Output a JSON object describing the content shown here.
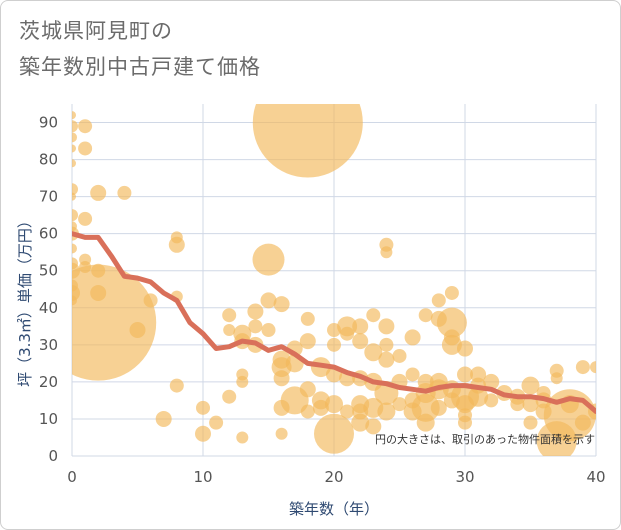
{
  "title_line1": "茨城県阿見町の",
  "title_line2": "築年数別中古戸建て価格",
  "chart_data": {
    "type": "scatter",
    "title": "茨城県阿見町の 築年数別中古戸建て価格",
    "xlabel": "築年数（年）",
    "ylabel": "坪（3.3㎡）単価（万円）",
    "xlim": [
      0,
      40
    ],
    "ylim": [
      0,
      95
    ],
    "x_ticks": [
      0,
      10,
      20,
      30,
      40
    ],
    "y_ticks": [
      0,
      10,
      20,
      30,
      40,
      50,
      60,
      70,
      80,
      90
    ],
    "grid": true,
    "annotation": "円の大きさは、取引のあった物件面積を示す",
    "colors": {
      "bubble": "#f2b85a",
      "line": "#d9705a",
      "grid": "#d0d8e6",
      "axis_title": "#2f4a72"
    },
    "bubbles": [
      {
        "x": 0,
        "y": 92,
        "r": 4
      },
      {
        "x": 0,
        "y": 89,
        "r": 6
      },
      {
        "x": 0,
        "y": 86,
        "r": 5
      },
      {
        "x": 0,
        "y": 83,
        "r": 4
      },
      {
        "x": 0,
        "y": 79,
        "r": 4
      },
      {
        "x": 0,
        "y": 72,
        "r": 6
      },
      {
        "x": 0,
        "y": 70,
        "r": 4
      },
      {
        "x": 0,
        "y": 65,
        "r": 6
      },
      {
        "x": 0,
        "y": 62,
        "r": 5
      },
      {
        "x": 0,
        "y": 60,
        "r": 7
      },
      {
        "x": 0,
        "y": 56,
        "r": 5
      },
      {
        "x": 0,
        "y": 52,
        "r": 6
      },
      {
        "x": 0,
        "y": 50,
        "r": 8
      },
      {
        "x": 0,
        "y": 46,
        "r": 6
      },
      {
        "x": 0,
        "y": 44,
        "r": 8
      },
      {
        "x": 0,
        "y": 42,
        "r": 5
      },
      {
        "x": 1,
        "y": 89,
        "r": 7
      },
      {
        "x": 1,
        "y": 83,
        "r": 7
      },
      {
        "x": 1,
        "y": 64,
        "r": 7
      },
      {
        "x": 1,
        "y": 53,
        "r": 6
      },
      {
        "x": 1,
        "y": 51,
        "r": 6
      },
      {
        "x": 2,
        "y": 71,
        "r": 8
      },
      {
        "x": 2,
        "y": 50,
        "r": 7
      },
      {
        "x": 2,
        "y": 44,
        "r": 8
      },
      {
        "x": 2,
        "y": 36,
        "r": 58
      },
      {
        "x": 4,
        "y": 71,
        "r": 7
      },
      {
        "x": 5,
        "y": 34,
        "r": 8
      },
      {
        "x": 6,
        "y": 42,
        "r": 7
      },
      {
        "x": 7,
        "y": 10,
        "r": 8
      },
      {
        "x": 8,
        "y": 59,
        "r": 6
      },
      {
        "x": 8,
        "y": 57,
        "r": 8
      },
      {
        "x": 8,
        "y": 43,
        "r": 6
      },
      {
        "x": 8,
        "y": 19,
        "r": 7
      },
      {
        "x": 10,
        "y": 13,
        "r": 7
      },
      {
        "x": 10,
        "y": 6,
        "r": 8
      },
      {
        "x": 11,
        "y": 9,
        "r": 7
      },
      {
        "x": 12,
        "y": 38,
        "r": 7
      },
      {
        "x": 12,
        "y": 34,
        "r": 6
      },
      {
        "x": 12,
        "y": 16,
        "r": 7
      },
      {
        "x": 13,
        "y": 33,
        "r": 9
      },
      {
        "x": 13,
        "y": 31,
        "r": 8
      },
      {
        "x": 13,
        "y": 22,
        "r": 6
      },
      {
        "x": 13,
        "y": 20,
        "r": 6
      },
      {
        "x": 13,
        "y": 5,
        "r": 6
      },
      {
        "x": 14,
        "y": 39,
        "r": 8
      },
      {
        "x": 14,
        "y": 35,
        "r": 7
      },
      {
        "x": 14,
        "y": 30,
        "r": 8
      },
      {
        "x": 15,
        "y": 53,
        "r": 16
      },
      {
        "x": 15,
        "y": 42,
        "r": 8
      },
      {
        "x": 15,
        "y": 34,
        "r": 7
      },
      {
        "x": 16,
        "y": 41,
        "r": 8
      },
      {
        "x": 16,
        "y": 26,
        "r": 9
      },
      {
        "x": 16,
        "y": 24,
        "r": 10
      },
      {
        "x": 16,
        "y": 21,
        "r": 8
      },
      {
        "x": 16,
        "y": 13,
        "r": 8
      },
      {
        "x": 16,
        "y": 6,
        "r": 6
      },
      {
        "x": 17,
        "y": 29,
        "r": 8
      },
      {
        "x": 17,
        "y": 25,
        "r": 9
      },
      {
        "x": 17,
        "y": 15,
        "r": 14
      },
      {
        "x": 18,
        "y": 90,
        "r": 55
      },
      {
        "x": 18,
        "y": 37,
        "r": 7
      },
      {
        "x": 18,
        "y": 31,
        "r": 8
      },
      {
        "x": 18,
        "y": 18,
        "r": 8
      },
      {
        "x": 18,
        "y": 12,
        "r": 7
      },
      {
        "x": 19,
        "y": 24,
        "r": 10
      },
      {
        "x": 19,
        "y": 15,
        "r": 9
      },
      {
        "x": 19,
        "y": 13,
        "r": 8
      },
      {
        "x": 20,
        "y": 34,
        "r": 7
      },
      {
        "x": 20,
        "y": 30,
        "r": 7
      },
      {
        "x": 20,
        "y": 22,
        "r": 8
      },
      {
        "x": 20,
        "y": 14,
        "r": 9
      },
      {
        "x": 20,
        "y": 6,
        "r": 20
      },
      {
        "x": 21,
        "y": 35,
        "r": 10
      },
      {
        "x": 21,
        "y": 33,
        "r": 7
      },
      {
        "x": 21,
        "y": 21,
        "r": 8
      },
      {
        "x": 21,
        "y": 12,
        "r": 7
      },
      {
        "x": 22,
        "y": 35,
        "r": 8
      },
      {
        "x": 22,
        "y": 31,
        "r": 8
      },
      {
        "x": 22,
        "y": 21,
        "r": 8
      },
      {
        "x": 22,
        "y": 14,
        "r": 9
      },
      {
        "x": 22,
        "y": 12,
        "r": 8
      },
      {
        "x": 22,
        "y": 9,
        "r": 9
      },
      {
        "x": 23,
        "y": 38,
        "r": 7
      },
      {
        "x": 23,
        "y": 28,
        "r": 9
      },
      {
        "x": 23,
        "y": 20,
        "r": 9
      },
      {
        "x": 23,
        "y": 13,
        "r": 10
      },
      {
        "x": 23,
        "y": 8,
        "r": 8
      },
      {
        "x": 24,
        "y": 57,
        "r": 7
      },
      {
        "x": 24,
        "y": 55,
        "r": 6
      },
      {
        "x": 24,
        "y": 35,
        "r": 8
      },
      {
        "x": 24,
        "y": 30,
        "r": 7
      },
      {
        "x": 24,
        "y": 26,
        "r": 8
      },
      {
        "x": 24,
        "y": 17,
        "r": 12
      },
      {
        "x": 24,
        "y": 12,
        "r": 9
      },
      {
        "x": 25,
        "y": 27,
        "r": 7
      },
      {
        "x": 25,
        "y": 20,
        "r": 8
      },
      {
        "x": 25,
        "y": 14,
        "r": 7
      },
      {
        "x": 26,
        "y": 32,
        "r": 8
      },
      {
        "x": 26,
        "y": 22,
        "r": 7
      },
      {
        "x": 26,
        "y": 15,
        "r": 8
      },
      {
        "x": 26,
        "y": 12,
        "r": 9
      },
      {
        "x": 27,
        "y": 38,
        "r": 7
      },
      {
        "x": 27,
        "y": 20,
        "r": 8
      },
      {
        "x": 27,
        "y": 17,
        "r": 10
      },
      {
        "x": 27,
        "y": 13,
        "r": 14
      },
      {
        "x": 27,
        "y": 9,
        "r": 9
      },
      {
        "x": 28,
        "y": 42,
        "r": 7
      },
      {
        "x": 28,
        "y": 37,
        "r": 8
      },
      {
        "x": 28,
        "y": 20,
        "r": 9
      },
      {
        "x": 28,
        "y": 18,
        "r": 10
      },
      {
        "x": 28,
        "y": 13,
        "r": 8
      },
      {
        "x": 29,
        "y": 44,
        "r": 7
      },
      {
        "x": 29,
        "y": 36,
        "r": 15
      },
      {
        "x": 29,
        "y": 32,
        "r": 8
      },
      {
        "x": 29,
        "y": 30,
        "r": 10
      },
      {
        "x": 29,
        "y": 18,
        "r": 9
      },
      {
        "x": 29,
        "y": 15,
        "r": 8
      },
      {
        "x": 30,
        "y": 29,
        "r": 8
      },
      {
        "x": 30,
        "y": 22,
        "r": 8
      },
      {
        "x": 30,
        "y": 16,
        "r": 14
      },
      {
        "x": 30,
        "y": 14,
        "r": 9
      },
      {
        "x": 30,
        "y": 11,
        "r": 7
      },
      {
        "x": 30,
        "y": 9,
        "r": 7
      },
      {
        "x": 31,
        "y": 22,
        "r": 8
      },
      {
        "x": 31,
        "y": 19,
        "r": 8
      },
      {
        "x": 31,
        "y": 16,
        "r": 10
      },
      {
        "x": 32,
        "y": 20,
        "r": 8
      },
      {
        "x": 32,
        "y": 15,
        "r": 7
      },
      {
        "x": 33,
        "y": 17,
        "r": 8
      },
      {
        "x": 34,
        "y": 16,
        "r": 8
      },
      {
        "x": 34,
        "y": 14,
        "r": 7
      },
      {
        "x": 35,
        "y": 19,
        "r": 9
      },
      {
        "x": 35,
        "y": 14,
        "r": 8
      },
      {
        "x": 35,
        "y": 9,
        "r": 7
      },
      {
        "x": 36,
        "y": 17,
        "r": 7
      },
      {
        "x": 36,
        "y": 15,
        "r": 8
      },
      {
        "x": 36,
        "y": 12,
        "r": 8
      },
      {
        "x": 37,
        "y": 23,
        "r": 7
      },
      {
        "x": 37,
        "y": 21,
        "r": 6
      },
      {
        "x": 37,
        "y": 4,
        "r": 20
      },
      {
        "x": 38,
        "y": 11,
        "r": 26
      },
      {
        "x": 38,
        "y": 14,
        "r": 9
      },
      {
        "x": 39,
        "y": 24,
        "r": 7
      },
      {
        "x": 39,
        "y": 9,
        "r": 8
      },
      {
        "x": 40,
        "y": 24,
        "r": 6
      },
      {
        "x": 40,
        "y": 12,
        "r": 8
      }
    ],
    "trend_line": {
      "x": [
        0,
        1,
        2,
        3,
        4,
        5,
        6,
        7,
        8,
        9,
        10,
        11,
        12,
        13,
        14,
        15,
        16,
        17,
        18,
        19,
        20,
        21,
        22,
        23,
        24,
        25,
        26,
        27,
        28,
        29,
        30,
        31,
        32,
        33,
        34,
        35,
        36,
        37,
        38,
        39,
        40
      ],
      "y": [
        60,
        59,
        59,
        54,
        48.5,
        48,
        47,
        44,
        42,
        36,
        33,
        29,
        29.5,
        31,
        30.5,
        28.5,
        29.5,
        27.5,
        25,
        24.5,
        24,
        22.5,
        21.5,
        20,
        19.5,
        18.5,
        18,
        17.5,
        18.5,
        19,
        19,
        18.5,
        18,
        16.5,
        16,
        16,
        15.5,
        14.5,
        15.5,
        15,
        12
      ]
    }
  }
}
